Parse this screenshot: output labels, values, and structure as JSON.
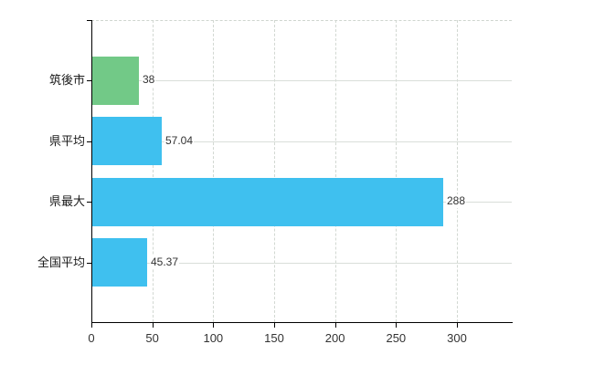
{
  "chart_data": {
    "type": "bar",
    "orientation": "horizontal",
    "title": "",
    "xlabel": "",
    "ylabel": "",
    "categories": [
      "筑後市",
      "県平均",
      "県最大",
      "全国平均"
    ],
    "values": [
      38,
      57.04,
      288,
      45.37
    ],
    "value_labels": [
      "38",
      "57.04",
      "288",
      "45.37"
    ],
    "bar_colors": [
      "#72c987",
      "#3fc0ef",
      "#3fc0ef",
      "#3fc0ef"
    ],
    "x_ticks": [
      0,
      50,
      100,
      150,
      200,
      250,
      300
    ],
    "x_tick_labels": [
      "0",
      "50",
      "100",
      "150",
      "200",
      "250",
      "300"
    ],
    "xlim": [
      0,
      345
    ],
    "legend": "none",
    "grid": {
      "vertical": "dashed light gray at each x tick",
      "horizontal": "solid light gray at each category center",
      "top_border": "dashed light gray"
    },
    "colors": {
      "axis": "#000000",
      "gridline": "#d9ded9",
      "tick_text": "#333333",
      "category_text": "#1a1a1a",
      "background": "#ffffff"
    }
  }
}
